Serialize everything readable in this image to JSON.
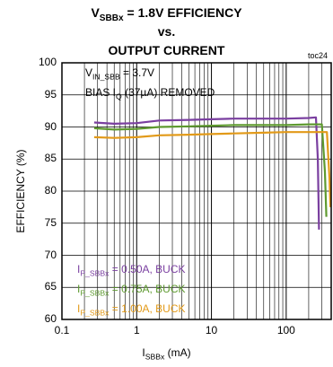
{
  "header": {
    "title_line1_prefix": "V",
    "title_line1_sub": "SBBx",
    "title_line1_suffix": " = 1.8V EFFICIENCY",
    "title_line2": "vs.",
    "title_line3": "OUTPUT CURRENT",
    "figure_tag": "toc24"
  },
  "annotations": {
    "vin_prefix": "V",
    "vin_sub": "IN_SBB",
    "vin_suffix": " = 3.7V",
    "bias_prefix": "BIAS I",
    "bias_sub": "Q",
    "bias_suffix": " (37µA) REMOVED"
  },
  "colors": {
    "purple": "#7a3fa0",
    "green": "#5e9a2f",
    "orange": "#e29a19",
    "axis": "#000000",
    "grid": "#000000"
  },
  "chart_data": {
    "type": "line",
    "title": "VSBBx = 1.8V EFFICIENCY vs. OUTPUT CURRENT",
    "xlabel": "ISBBx (mA)",
    "ylabel": "EFFICIENCY (%)",
    "x_scale": "log",
    "xlim": [
      0.1,
      400
    ],
    "ylim": [
      60,
      100
    ],
    "x_ticks": [
      0.1,
      1,
      10,
      100
    ],
    "x_tick_labels": [
      "0.1",
      "1",
      "10",
      "100"
    ],
    "y_ticks": [
      60,
      65,
      70,
      75,
      80,
      85,
      90,
      95,
      100
    ],
    "y_tick_labels": [
      "60",
      "65",
      "70",
      "75",
      "80",
      "85",
      "90",
      "95",
      "100"
    ],
    "grid": true,
    "legend_position": "bottom-left",
    "series": [
      {
        "name": "IP_SBBx = 0.50A, BUCK",
        "legend_prefix": "I",
        "legend_sub": "P_SBBx",
        "legend_suffix": " = 0.50A, BUCK",
        "color": "#7a3fa0",
        "x": [
          0.27,
          0.5,
          1,
          2,
          5,
          10,
          20,
          50,
          100,
          200,
          250,
          265,
          275
        ],
        "y": [
          90.7,
          90.5,
          90.6,
          91.0,
          91.1,
          91.2,
          91.3,
          91.3,
          91.3,
          91.4,
          91.5,
          85.0,
          74.0
        ]
      },
      {
        "name": "IP_SBBx = 0.75A, BUCK",
        "legend_prefix": "I",
        "legend_sub": "P_SBBx",
        "legend_suffix": " = 0.75A, BUCK",
        "color": "#5e9a2f",
        "x": [
          0.27,
          0.5,
          1,
          2,
          5,
          10,
          20,
          50,
          100,
          200,
          300,
          330,
          345
        ],
        "y": [
          89.8,
          89.6,
          89.7,
          90.0,
          90.1,
          90.2,
          90.3,
          90.3,
          90.3,
          90.4,
          90.4,
          83.0,
          76.0
        ]
      },
      {
        "name": "IP_SBBx = 1.00A, BUCK",
        "legend_prefix": "I",
        "legend_sub": "P_SBBx",
        "legend_suffix": " = 1.00A, BUCK",
        "color": "#e29a19",
        "x": [
          0.27,
          0.5,
          1,
          2,
          5,
          10,
          20,
          50,
          100,
          200,
          350,
          380,
          390
        ],
        "y": [
          88.4,
          88.3,
          88.4,
          88.7,
          88.8,
          88.9,
          89.0,
          89.1,
          89.2,
          89.2,
          89.2,
          82.0,
          77.5
        ]
      }
    ]
  }
}
